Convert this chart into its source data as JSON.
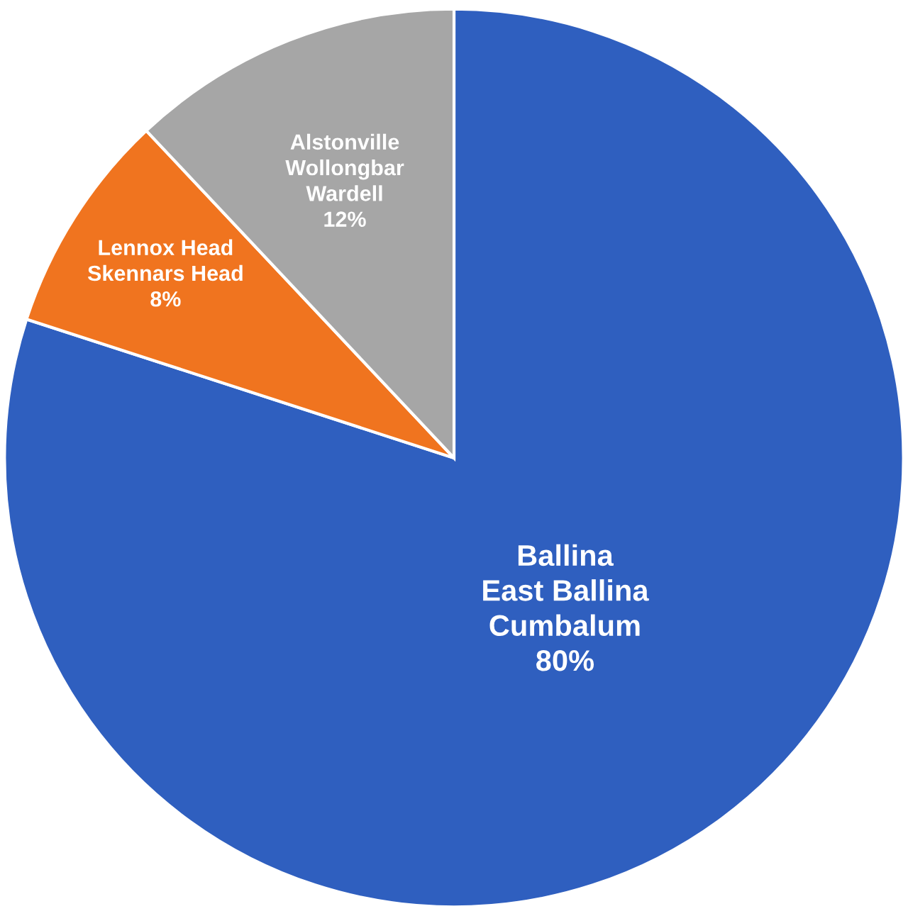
{
  "chart_data": {
    "type": "pie",
    "categories": [
      "Ballina\nEast Ballina\nCumbalum",
      "Lennox Head\nSkennars Head",
      "Alstonville\nWollongbar\nWardell"
    ],
    "values": [
      80,
      8,
      12
    ],
    "value_labels": [
      "80%",
      "8%",
      "12%"
    ],
    "colors": [
      "#2f5fbf",
      "#f0741f",
      "#a6a6a6"
    ],
    "legend": false
  }
}
